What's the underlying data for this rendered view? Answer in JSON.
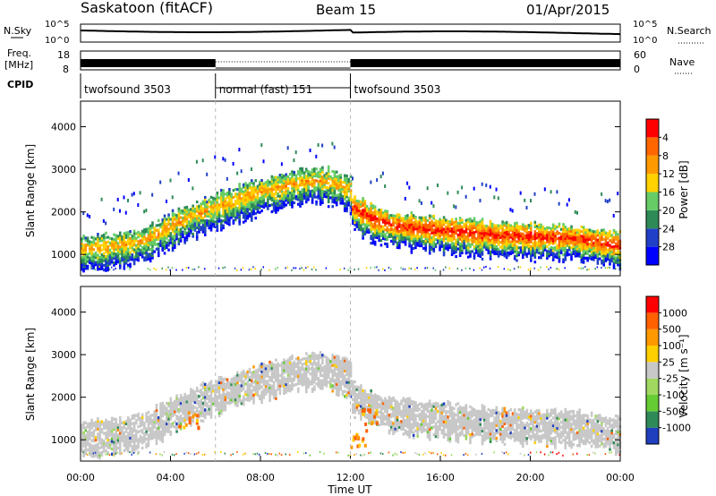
{
  "header": {
    "station": "Saskatoon (fitACF)",
    "beam": "Beam 15",
    "date": "01/Apr/2015"
  },
  "top_panels": {
    "nsky_label": "N.Sky",
    "nsky_ticks": [
      "10^5",
      "10^0"
    ],
    "nsearch_label": "N.Search",
    "nsearch_ticks": [
      "10^5",
      "10^0"
    ],
    "freq_label_1": "Freq.",
    "freq_label_2": "[MHz]",
    "freq_ticks": [
      "18",
      "8"
    ],
    "nave_label": "Nave",
    "nave_ticks": [
      "60",
      "0"
    ],
    "cpid_label": "CPID",
    "cpid_segments": [
      {
        "label": "twofsound 3503",
        "start_hour": 0,
        "end_hour": 6
      },
      {
        "label": "normal (fast) 151",
        "start_hour": 6,
        "end_hour": 12
      },
      {
        "label": "twofsound 3503",
        "start_hour": 12,
        "end_hour": 24
      }
    ]
  },
  "chart_data": [
    {
      "type": "heatmap",
      "title": "",
      "xlabel": "Time UT",
      "ylabel": "Slant Range [km]",
      "xlim": [
        0,
        24
      ],
      "ylim": [
        500,
        4600
      ],
      "x_ticks": [
        "00:00",
        "04:00",
        "08:00",
        "12:00",
        "16:00",
        "20:00",
        "00:00"
      ],
      "y_ticks": [
        "1000",
        "2000",
        "3000",
        "4000"
      ],
      "colorbar": {
        "label": "Power [dB]",
        "ticks": [
          "4",
          "8",
          "12",
          "16",
          "20",
          "24",
          "28"
        ],
        "colors": [
          "#0000ff",
          "#2040c8",
          "#2e8b57",
          "#66cc66",
          "#ffd200",
          "#ff9900",
          "#ff6600",
          "#ff0000"
        ]
      },
      "echo_bands": [
        {
          "x": [
            0,
            2,
            3,
            4,
            5,
            6,
            8,
            10,
            11,
            12
          ],
          "y": [
            1100,
            1200,
            1350,
            1650,
            1900,
            2100,
            2450,
            2700,
            2700,
            2500
          ]
        },
        {
          "x": [
            12,
            13,
            14,
            16,
            18,
            20,
            22,
            24
          ],
          "y": [
            2100,
            1800,
            1650,
            1550,
            1450,
            1400,
            1350,
            1200
          ]
        }
      ]
    },
    {
      "type": "heatmap",
      "title": "",
      "xlabel": "Time UT",
      "ylabel": "Slant Range [km]",
      "xlim": [
        0,
        24
      ],
      "ylim": [
        500,
        4600
      ],
      "x_ticks": [
        "00:00",
        "04:00",
        "08:00",
        "12:00",
        "16:00",
        "20:00",
        "00:00"
      ],
      "y_ticks": [
        "1000",
        "2000",
        "3000",
        "4000"
      ],
      "colorbar": {
        "label": "Velocity [m s⁻¹]",
        "ticks": [
          "1000",
          "500",
          "100",
          "25",
          "-25",
          "-100",
          "-500",
          "-1000"
        ],
        "colors": [
          "#1f3fbf",
          "#2e8b57",
          "#66cc33",
          "#a0d860",
          "#c8c8c8",
          "#ffd000",
          "#ff9900",
          "#ff6000",
          "#ff0000"
        ]
      }
    }
  ],
  "x_axis_label": "Time UT"
}
